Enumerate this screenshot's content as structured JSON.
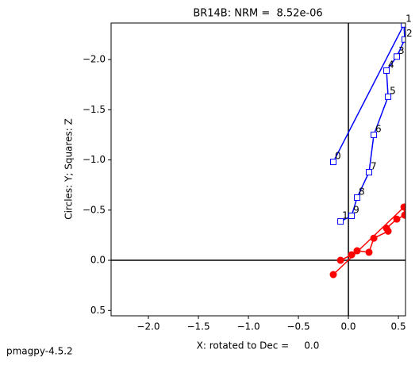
{
  "chart_data": {
    "type": "zijderveld",
    "title": "BR14B: NRM =  8.52e-06",
    "x_label": "X: rotated to Dec =     0.0",
    "y_label": "Circles: Y; Squares: Z",
    "footer": "pmagpy-4.5.2",
    "x": [
      -0.151,
      0.556,
      0.563,
      0.484,
      0.381,
      0.397,
      0.254,
      0.206,
      0.087,
      0.032,
      -0.079
    ],
    "point_labels": [
      "0",
      "1",
      "2",
      "3",
      "4",
      "5",
      "6",
      "7",
      "8",
      "9",
      "1"
    ],
    "series": [
      {
        "name": "Y",
        "marker": "circle",
        "color": "#ff0000",
        "values": [
          0.142,
          -0.53,
          -0.45,
          -0.41,
          -0.32,
          -0.29,
          -0.22,
          -0.08,
          -0.095,
          -0.055,
          0.0
        ]
      },
      {
        "name": "Z",
        "marker": "square",
        "color": "#0000ff",
        "values": [
          -0.98,
          -2.35,
          -2.2,
          -2.03,
          -1.89,
          -1.63,
          -1.25,
          -0.877,
          -0.625,
          -0.443,
          -0.387
        ]
      }
    ],
    "xlim": [
      -2.373,
      0.571
    ],
    "ylim": [
      0.553,
      -2.364
    ],
    "xticks": [
      {
        "value": -2,
        "label": "−2.0"
      },
      {
        "value": -1.5,
        "label": "−1.5"
      },
      {
        "value": -1,
        "label": "−1.0"
      },
      {
        "value": -0.5,
        "label": "−0.5"
      },
      {
        "value": 0,
        "label": "0.0"
      },
      0.5
    ],
    "yticks": [
      {
        "value": -2,
        "label": "−2.0"
      },
      {
        "value": -1.5,
        "label": "−1.5"
      },
      {
        "value": -1,
        "label": "−1.0"
      },
      {
        "value": -0.5,
        "label": "−0.5"
      },
      {
        "value": 0,
        "label": "0.0"
      },
      0.5
    ]
  }
}
